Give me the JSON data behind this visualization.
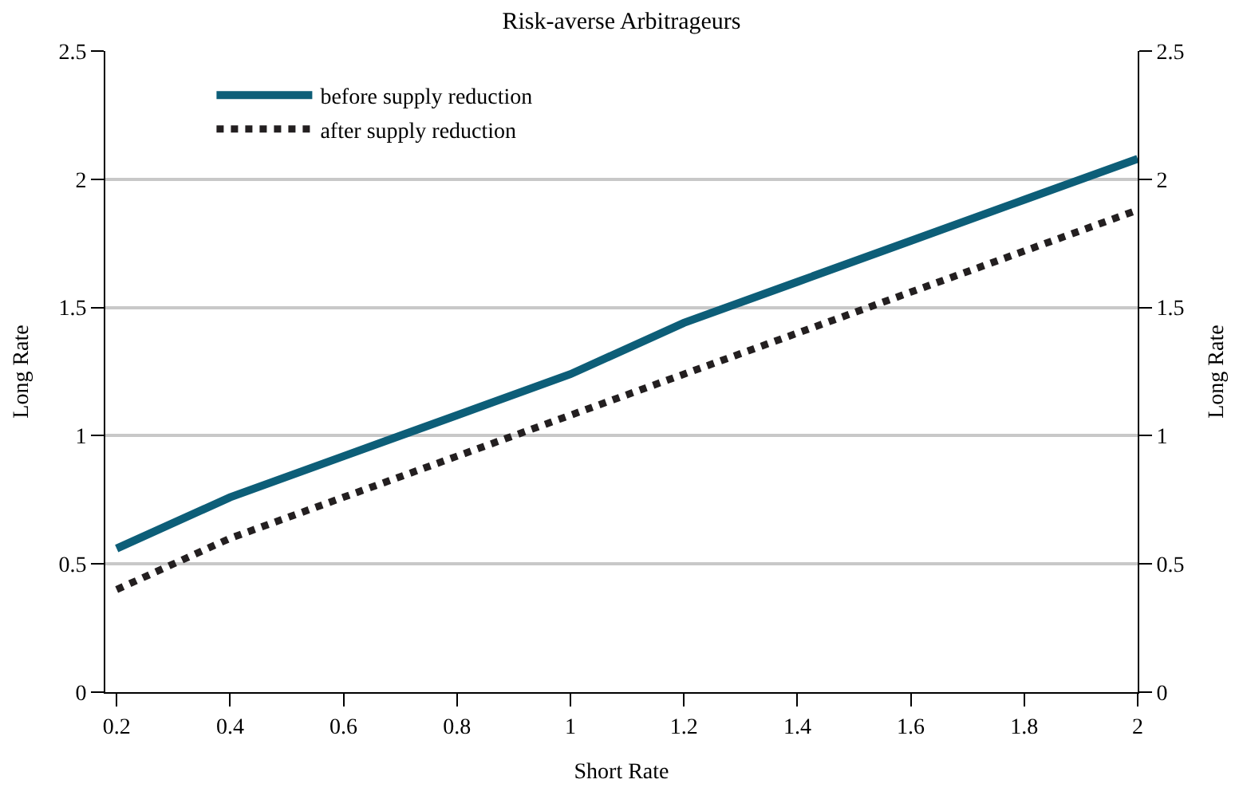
{
  "chart_data": {
    "type": "line",
    "title": "Risk-averse Arbitrageurs",
    "xlabel": "Short Rate",
    "ylabel": "Long Rate",
    "y2label": "Long Rate",
    "x": [
      0.2,
      0.4,
      0.6,
      0.8,
      1.0,
      1.2,
      1.4,
      1.6,
      1.8,
      2.0
    ],
    "series": [
      {
        "name": "before supply reduction",
        "color": "#0d5e78",
        "line_style": "solid",
        "values": [
          0.56,
          0.76,
          0.92,
          1.08,
          1.24,
          1.44,
          1.6,
          1.76,
          1.92,
          2.08
        ]
      },
      {
        "name": "after supply reduction",
        "color": "#231f20",
        "line_style": "dotted",
        "values": [
          0.4,
          0.6,
          0.76,
          0.92,
          1.08,
          1.24,
          1.4,
          1.56,
          1.72,
          1.88
        ]
      }
    ],
    "xlim": [
      0.18,
      2.0
    ],
    "xticks": [
      0.2,
      0.4,
      0.6,
      0.8,
      1,
      1.2,
      1.4,
      1.6,
      1.8,
      2
    ],
    "ylim": [
      0,
      2.5
    ],
    "yticks": [
      0,
      0.5,
      1,
      1.5,
      2,
      2.5
    ],
    "y2lim": [
      0,
      2.5
    ],
    "y2ticks": [
      0,
      0.5,
      1,
      1.5,
      2,
      2.5
    ],
    "grid": "y",
    "legend": "top left",
    "marker": "none"
  }
}
